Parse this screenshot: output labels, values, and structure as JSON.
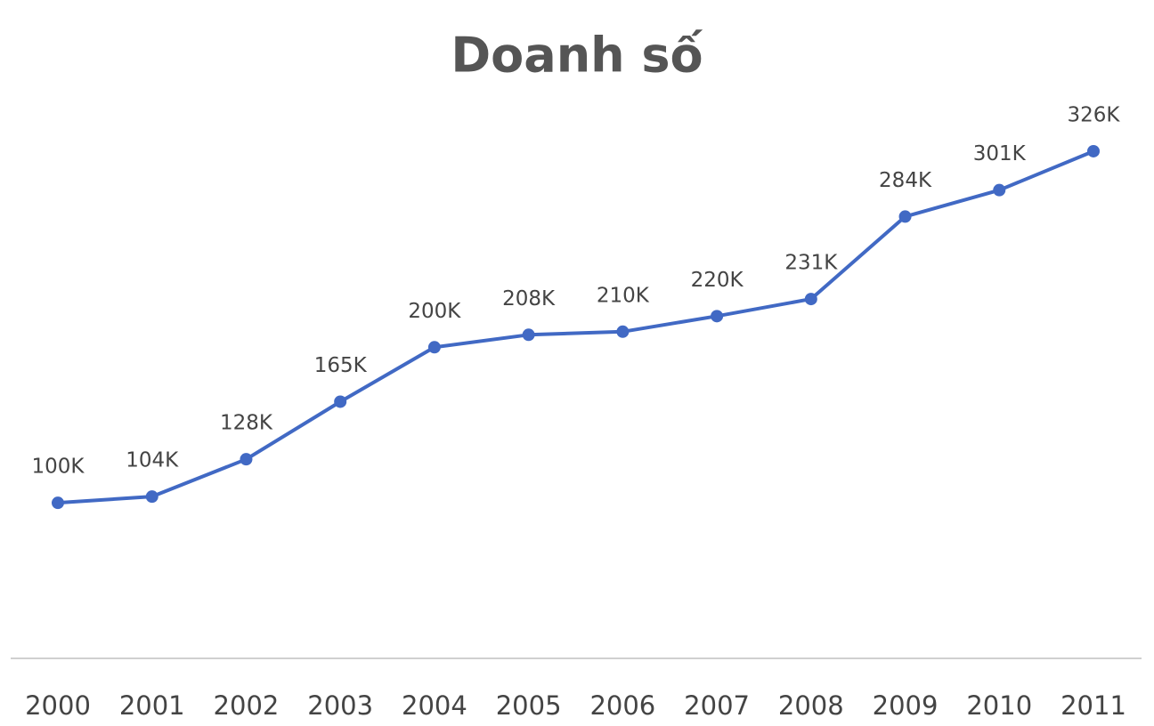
{
  "chart_data": {
    "type": "line",
    "title": "Doanh số",
    "categories": [
      "2000",
      "2001",
      "2002",
      "2003",
      "2004",
      "2005",
      "2006",
      "2007",
      "2008",
      "2009",
      "2010",
      "2011"
    ],
    "values": [
      100000,
      104000,
      128000,
      165000,
      200000,
      208000,
      210000,
      220000,
      231000,
      284000,
      301000,
      326000
    ],
    "value_labels": [
      "100K",
      "104K",
      "128K",
      "165K",
      "200K",
      "208K",
      "210K",
      "220K",
      "231K",
      "284K",
      "301K",
      "326K"
    ],
    "color": "#4169c4",
    "ylim": [
      0,
      350000
    ]
  }
}
